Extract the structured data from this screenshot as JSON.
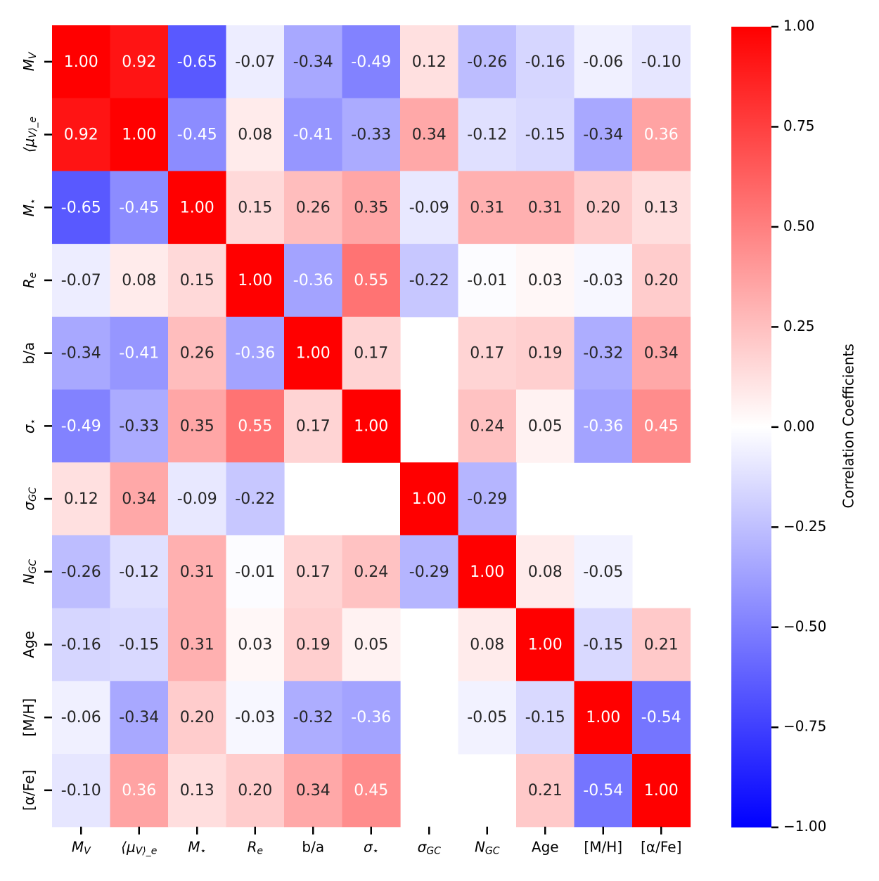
{
  "chart_data": {
    "type": "heatmap",
    "title": "",
    "x_labels": [
      "M_V",
      "⟨μ_V⟩_e",
      "M_⋆",
      "R_e",
      "b/a",
      "σ_⋆",
      "σ_GC",
      "N_GC",
      "Age",
      "[M/H]",
      "[α/Fe]"
    ],
    "y_labels": [
      "M_V",
      "⟨μ_V⟩_e",
      "M_⋆",
      "R_e",
      "b/a",
      "σ_⋆",
      "σ_GC",
      "N_GC",
      "Age",
      "[M/H]",
      "[α/Fe]"
    ],
    "values": [
      [
        1.0,
        0.92,
        -0.65,
        -0.07,
        -0.34,
        -0.49,
        0.12,
        -0.26,
        -0.16,
        -0.06,
        -0.1
      ],
      [
        0.92,
        1.0,
        -0.45,
        0.08,
        -0.41,
        -0.33,
        0.34,
        -0.12,
        -0.15,
        -0.34,
        0.36
      ],
      [
        -0.65,
        -0.45,
        1.0,
        0.15,
        0.26,
        0.35,
        -0.09,
        0.31,
        0.31,
        0.2,
        0.13
      ],
      [
        -0.07,
        0.08,
        0.15,
        1.0,
        -0.36,
        0.55,
        -0.22,
        -0.01,
        0.03,
        -0.03,
        0.2
      ],
      [
        -0.34,
        -0.41,
        0.26,
        -0.36,
        1.0,
        0.17,
        null,
        0.17,
        0.19,
        -0.32,
        0.34
      ],
      [
        -0.49,
        -0.33,
        0.35,
        0.55,
        0.17,
        1.0,
        null,
        0.24,
        0.05,
        -0.36,
        0.45
      ],
      [
        0.12,
        0.34,
        -0.09,
        -0.22,
        null,
        null,
        1.0,
        -0.29,
        null,
        null,
        null
      ],
      [
        -0.26,
        -0.12,
        0.31,
        -0.01,
        0.17,
        0.24,
        -0.29,
        1.0,
        0.08,
        -0.05,
        null
      ],
      [
        -0.16,
        -0.15,
        0.31,
        0.03,
        0.19,
        0.05,
        null,
        0.08,
        1.0,
        -0.15,
        0.21
      ],
      [
        -0.06,
        -0.34,
        0.2,
        -0.03,
        -0.32,
        -0.36,
        null,
        -0.05,
        -0.15,
        1.0,
        -0.54
      ],
      [
        -0.1,
        0.36,
        0.13,
        0.2,
        0.34,
        0.45,
        null,
        null,
        0.21,
        -0.54,
        1.0
      ]
    ],
    "value_format": "0.00",
    "colormap": "bwr",
    "vmin": -1.0,
    "vmax": 1.0,
    "colorbar": {
      "label": "Correlation Coefficients",
      "ticks": [
        1.0,
        0.75,
        0.5,
        0.25,
        0.0,
        -0.25,
        -0.5,
        -0.75,
        -1.0
      ],
      "tick_labels": [
        "1.00",
        "0.75",
        "0.50",
        "0.25",
        "0.00",
        "−0.25",
        "−0.50",
        "−0.75",
        "−1.00"
      ],
      "placement": "right"
    },
    "colors": {
      "min": "#0000ff",
      "mid": "#ffffff",
      "max": "#ff0000",
      "text_dark": "#262626",
      "text_light": "#ffffff"
    }
  }
}
